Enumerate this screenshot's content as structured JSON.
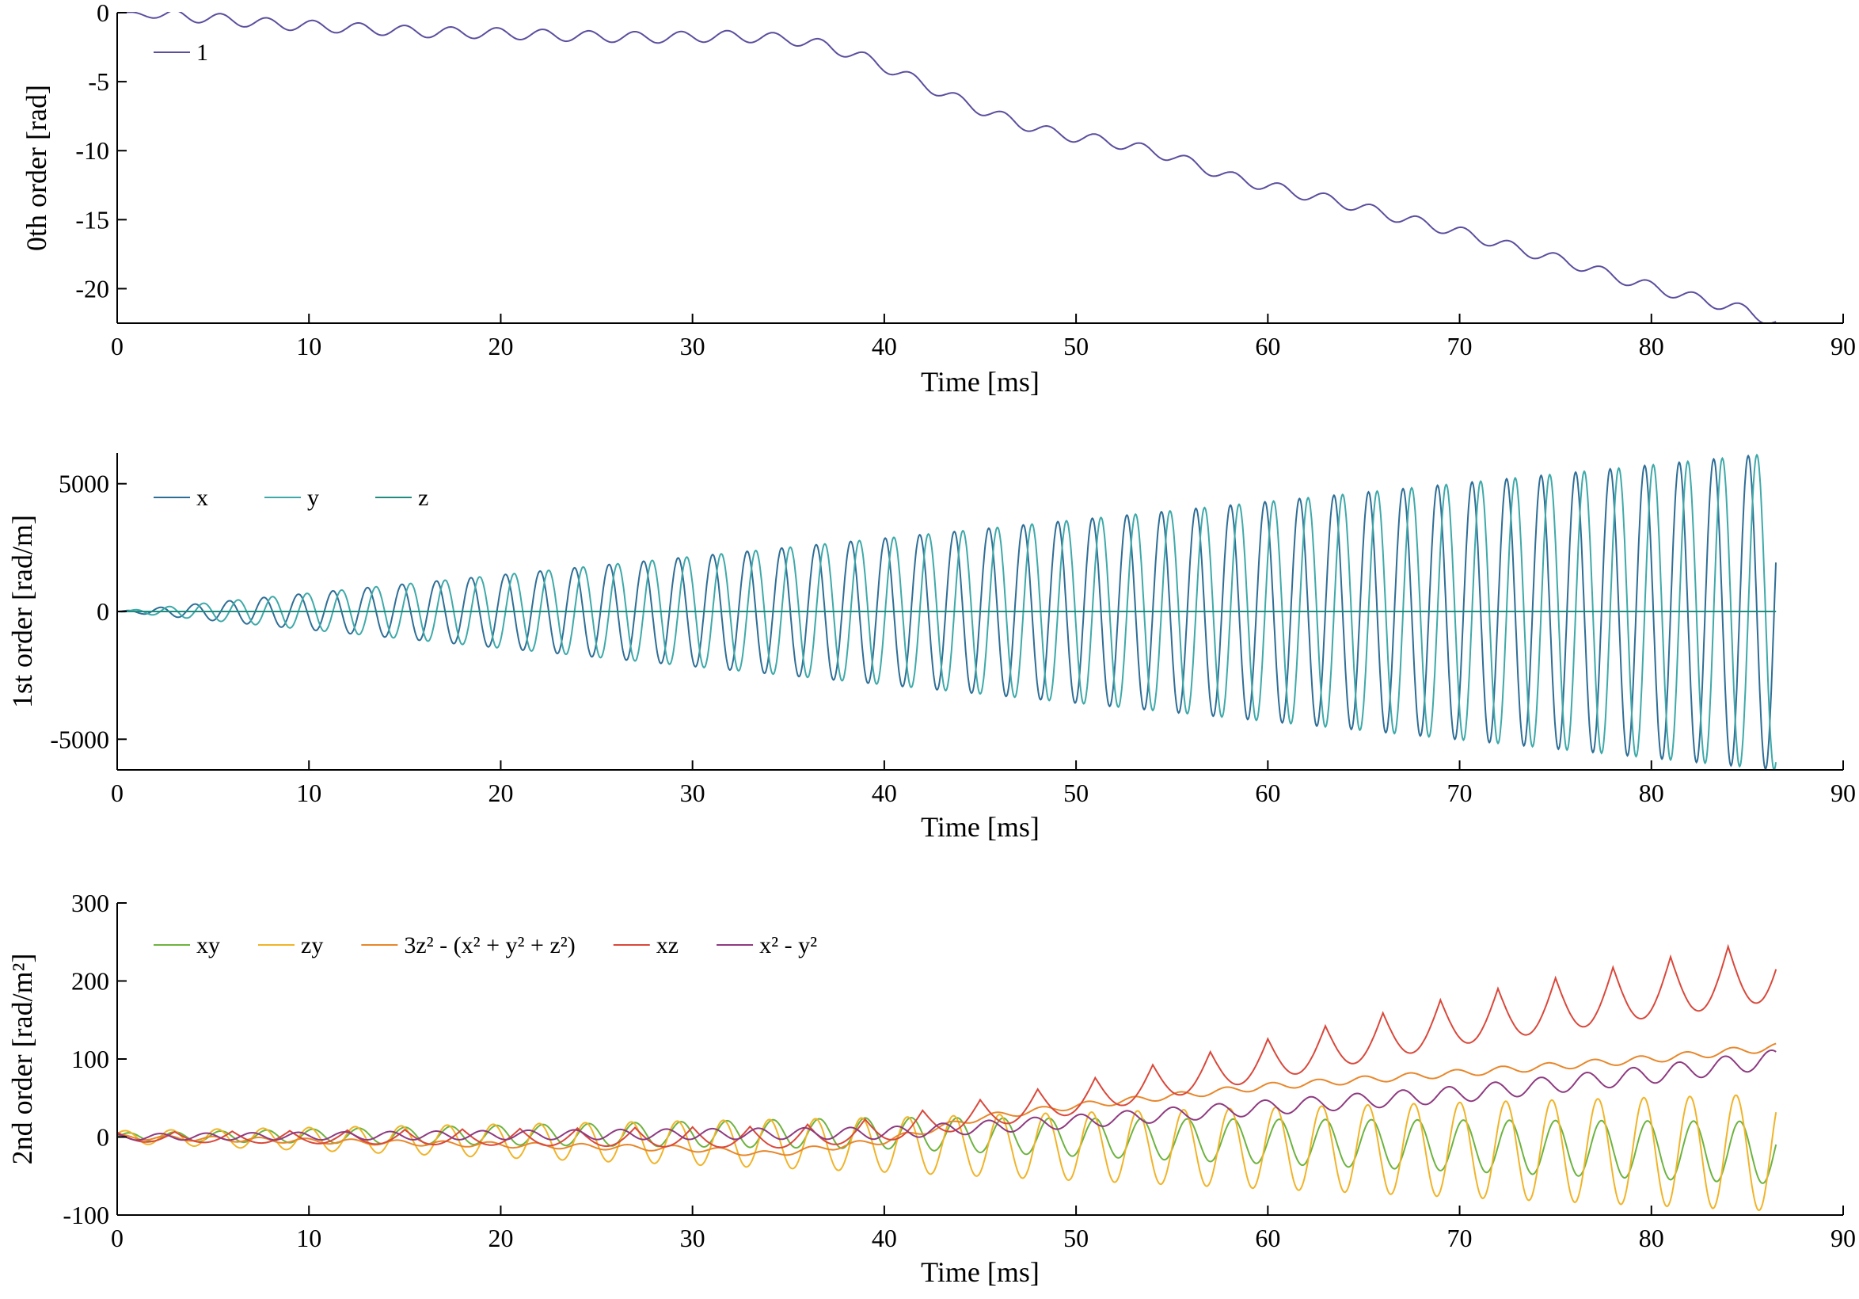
{
  "chart_data": [
    {
      "type": "line",
      "xlabel": "Time [ms]",
      "ylabel": "0th order [rad]",
      "xlim": [
        0,
        90
      ],
      "ylim": [
        -22.5,
        0
      ],
      "xticks": [
        "0",
        "10",
        "20",
        "30",
        "40",
        "50",
        "60",
        "70",
        "80",
        "90"
      ],
      "xtick_values": [
        0,
        10,
        20,
        30,
        40,
        50,
        60,
        70,
        80,
        90
      ],
      "yticks": [
        "0",
        "-5",
        "-10",
        "-15",
        "-20"
      ],
      "ytick_values": [
        0,
        -5,
        -10,
        -15,
        -20
      ],
      "legend": {
        "placement": "top-left",
        "orientation": "horizontal"
      },
      "grid": false,
      "series": [
        {
          "name": "1",
          "color": "#5B4E9E",
          "x": [
            0,
            4,
            8,
            12,
            16,
            20,
            24,
            28,
            32,
            35,
            37,
            39,
            41,
            43,
            45,
            47,
            49,
            52,
            55,
            58,
            61,
            64,
            67,
            70,
            73,
            76,
            79,
            82,
            85,
            86.5
          ],
          "y": [
            0,
            -0.3,
            -0.8,
            -1.1,
            -1.4,
            -1.5,
            -1.7,
            -1.8,
            -1.7,
            -1.9,
            -2.4,
            -3.3,
            -4.5,
            -5.8,
            -7.0,
            -8.0,
            -8.8,
            -9.4,
            -10.4,
            -11.9,
            -12.9,
            -13.8,
            -14.9,
            -15.9,
            -17.1,
            -18.2,
            -19.5,
            -20.6,
            -21.6,
            -22.5
          ],
          "oscillation_amplitude": 0.4,
          "oscillation_period_ms": 2.4
        }
      ]
    },
    {
      "type": "line",
      "xlabel": "Time [ms]",
      "ylabel": "1st order [rad/m]",
      "xlim": [
        0,
        90
      ],
      "ylim": [
        -6200,
        6200
      ],
      "xticks": [
        "0",
        "10",
        "20",
        "30",
        "40",
        "50",
        "60",
        "70",
        "80",
        "90"
      ],
      "xtick_values": [
        0,
        10,
        20,
        30,
        40,
        50,
        60,
        70,
        80,
        90
      ],
      "yticks": [
        "5000",
        "0",
        "-5000"
      ],
      "ytick_values": [
        5000,
        0,
        -5000
      ],
      "legend": {
        "placement": "top-left",
        "orientation": "horizontal"
      },
      "grid": false,
      "series": [
        {
          "name": "x",
          "color": "#2E6E96",
          "envelope_x": [
            0,
            86.5
          ],
          "envelope": [
            0,
            6200
          ],
          "period_ms": 1.8,
          "phase_ms": 0
        },
        {
          "name": "y",
          "color": "#3FA9A9",
          "envelope_x": [
            0,
            86.5
          ],
          "envelope": [
            0,
            6200
          ],
          "period_ms": 1.8,
          "phase_ms": 0.45
        },
        {
          "name": "z",
          "color": "#1F8C7E",
          "x": [
            0,
            86.5
          ],
          "y": [
            0,
            0
          ]
        }
      ]
    },
    {
      "type": "line",
      "xlabel": "Time [ms]",
      "ylabel": "2nd order [rad/m²]",
      "xlim": [
        0,
        90
      ],
      "ylim": [
        -100,
        300
      ],
      "xticks": [
        "0",
        "10",
        "20",
        "30",
        "40",
        "50",
        "60",
        "70",
        "80",
        "90"
      ],
      "xtick_values": [
        0,
        10,
        20,
        30,
        40,
        50,
        60,
        70,
        80,
        90
      ],
      "yticks": [
        "300",
        "200",
        "100",
        "0",
        "-100"
      ],
      "ytick_values": [
        300,
        200,
        100,
        0,
        -100
      ],
      "legend": {
        "placement": "top-left",
        "orientation": "horizontal"
      },
      "grid": false,
      "series": [
        {
          "name": "xy",
          "color": "#6DB33F",
          "trend_x": [
            0,
            40,
            86.5
          ],
          "trend": [
            0,
            5,
            -20
          ],
          "amp_x": [
            0,
            40,
            86.5
          ],
          "amp": [
            5,
            20,
            40
          ],
          "period_ms": 2.4
        },
        {
          "name": "zy",
          "color": "#F0B429",
          "trend_x": [
            0,
            40,
            86.5
          ],
          "trend": [
            0,
            -10,
            -20
          ],
          "amp_x": [
            0,
            40,
            86.5
          ],
          "amp": [
            8,
            35,
            75
          ],
          "period_ms": 2.4
        },
        {
          "name": "3z² - (x² + y² + z²)",
          "color": "#E8872B",
          "trend_x": [
            0,
            30,
            34,
            40,
            45,
            50,
            60,
            70,
            80,
            86.5
          ],
          "trend": [
            0,
            -15,
            -22,
            -5,
            25,
            40,
            65,
            82,
            100,
            115
          ],
          "amp_x": [
            0,
            86.5
          ],
          "amp": [
            3,
            5
          ],
          "period_ms": 2.4
        },
        {
          "name": "xz",
          "color": "#D9483B",
          "trend_x": [
            0,
            35,
            40,
            45,
            50,
            55,
            60,
            65,
            70,
            75,
            80,
            86.5
          ],
          "trend": [
            0,
            0,
            10,
            30,
            50,
            75,
            100,
            125,
            150,
            170,
            190,
            215
          ],
          "amp_x": [
            0,
            40,
            86.5
          ],
          "amp": [
            6,
            15,
            40
          ],
          "period_ms": 3.0
        },
        {
          "name": "x² - y²",
          "color": "#8E3A80",
          "trend_x": [
            0,
            40,
            50,
            60,
            70,
            80,
            86.5
          ],
          "trend": [
            0,
            5,
            20,
            38,
            55,
            80,
            100
          ],
          "amp_x": [
            0,
            86.5
          ],
          "amp": [
            4,
            12
          ],
          "period_ms": 2.4
        }
      ]
    }
  ]
}
